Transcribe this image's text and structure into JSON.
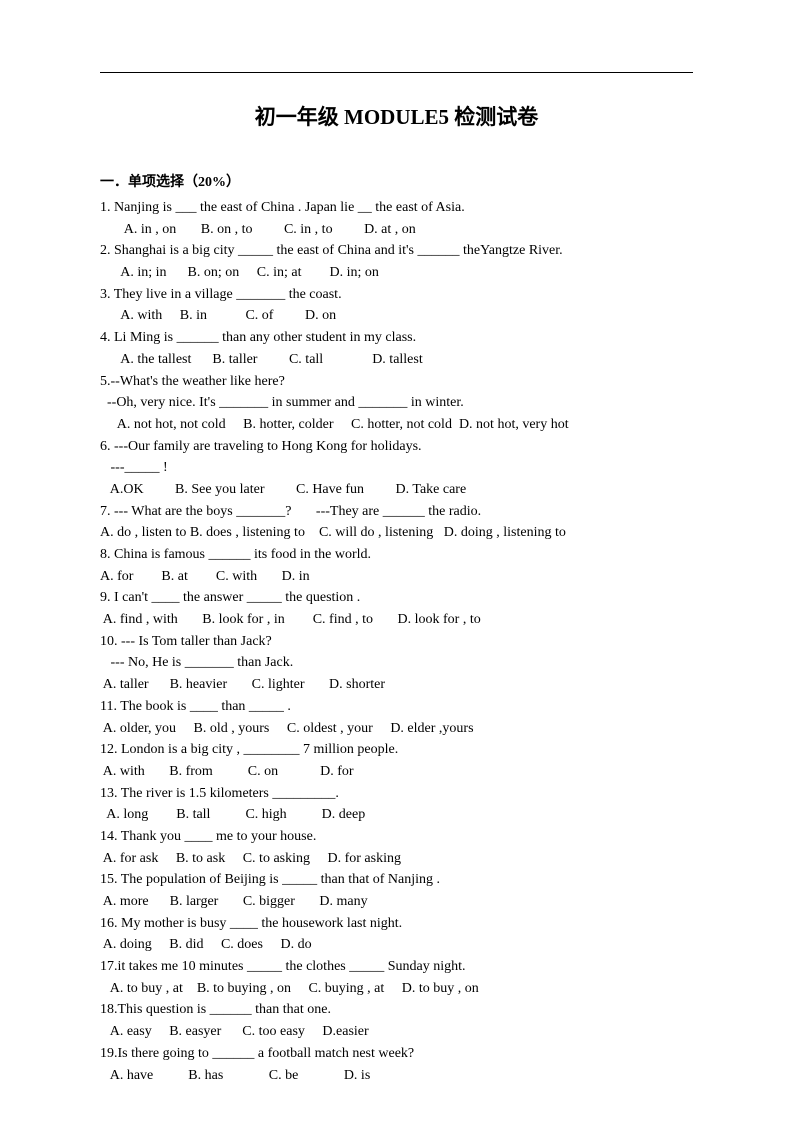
{
  "title": "初一年级 MODULE5 检测试卷",
  "section_header": "一．单项选择（20%）",
  "lines": [
    "1. Nanjing is ___ the east of China . Japan lie __ the east of Asia.",
    "       A. in , on       B. on , to         C. in , to         D. at , on",
    "2. Shanghai is a big city _____ the east of China and it's ______ theYangtze River.",
    "      A. in; in      B. on; on     C. in; at        D. in; on",
    "3. They live in a village _______ the coast.",
    "      A. with     B. in           C. of         D. on",
    "4. Li Ming is ______ than any other student in my class.",
    "      A. the tallest      B. taller         C. tall              D. tallest",
    "5.--What's the weather like here?",
    "  --Oh, very nice. It's _______ in summer and _______ in winter.",
    "     A. not hot, not cold     B. hotter, colder     C. hotter, not cold  D. not hot, very hot",
    "6. ---Our family are traveling to Hong Kong for holidays.",
    "   ---_____ !",
    "   A.OK         B. See you later         C. Have fun         D. Take care",
    "7. --- What are the boys _______?       ---They are ______ the radio.",
    "A. do , listen to B. does , listening to    C. will do , listening   D. doing , listening to",
    "8. China is famous ______ its food in the world.",
    "A. for        B. at        C. with       D. in",
    "9. I can't ____ the answer _____ the question .",
    " A. find , with       B. look for , in        C. find , to       D. look for , to",
    "10. --- Is Tom taller than Jack?",
    "   --- No, He is _______ than Jack.",
    " A. taller      B. heavier       C. lighter       D. shorter",
    "11. The book is ____ than _____ .",
    " A. older, you     B. old , yours     C. oldest , your     D. elder ,yours",
    "12. London is a big city , ________ 7 million people.",
    " A. with       B. from          C. on            D. for",
    "13. The river is 1.5 kilometers _________.",
    "  A. long        B. tall          C. high          D. deep",
    "14. Thank you ____ me to your house.",
    " A. for ask     B. to ask     C. to asking     D. for asking",
    "15. The population of Beijing is _____ than that of Nanjing .",
    " A. more      B. larger       C. bigger       D. many",
    "16. My mother is busy ____ the housework last night.",
    " A. doing     B. did     C. does     D. do",
    "17.it takes me 10 minutes _____ the clothes _____ Sunday night.",
    "   A. to buy , at    B. to buying , on     C. buying , at     D. to buy , on",
    "18.This question is ______ than that one.",
    "   A. easy     B. easyer      C. too easy     D.easier",
    "19.Is there going to ______ a football match nest week?",
    "",
    "   A. have          B. has             C. be             D. is"
  ]
}
